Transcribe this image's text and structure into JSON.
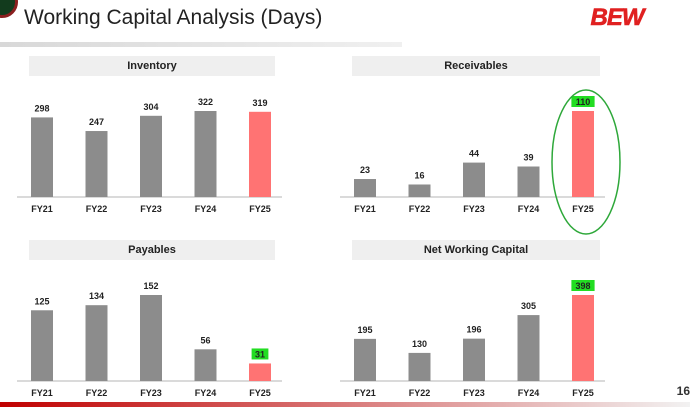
{
  "page": {
    "title": "Working Capital Analysis (Days)",
    "page_number": "16"
  },
  "brand": {
    "logo_text": "BEW",
    "color": "#e02020"
  },
  "colors": {
    "historical_bar": "#8c8c8c",
    "current_bar": "#ff7373",
    "label_highlight": "#22dd22",
    "annotation_ellipse": "#2ea83a",
    "header_background": "#efefef"
  },
  "chart_data": [
    {
      "type": "bar",
      "title": "Inventory",
      "categories": [
        "FY21",
        "FY22",
        "FY23",
        "FY24",
        "FY25"
      ],
      "values": [
        298,
        247,
        304,
        322,
        319
      ],
      "ylim": [
        0,
        322
      ],
      "highlight_bar_index": 4,
      "highlight_label_index": null,
      "circled": false
    },
    {
      "type": "bar",
      "title": "Receivables",
      "categories": [
        "FY21",
        "FY22",
        "FY23",
        "FY24",
        "FY25"
      ],
      "values": [
        23,
        16,
        44,
        39,
        110
      ],
      "ylim": [
        0,
        110
      ],
      "highlight_bar_index": 4,
      "highlight_label_index": 4,
      "circled": true
    },
    {
      "type": "bar",
      "title": "Payables",
      "categories": [
        "FY21",
        "FY22",
        "FY23",
        "FY24",
        "FY25"
      ],
      "values": [
        125,
        134,
        152,
        56,
        31
      ],
      "ylim": [
        0,
        152
      ],
      "highlight_bar_index": 4,
      "highlight_label_index": 4,
      "circled": false
    },
    {
      "type": "bar",
      "title": "Net Working Capital",
      "categories": [
        "FY21",
        "FY22",
        "FY23",
        "FY24",
        "FY25"
      ],
      "values": [
        195,
        130,
        196,
        305,
        398
      ],
      "ylim": [
        0,
        398
      ],
      "highlight_bar_index": 4,
      "highlight_label_index": 4,
      "circled": false
    }
  ]
}
